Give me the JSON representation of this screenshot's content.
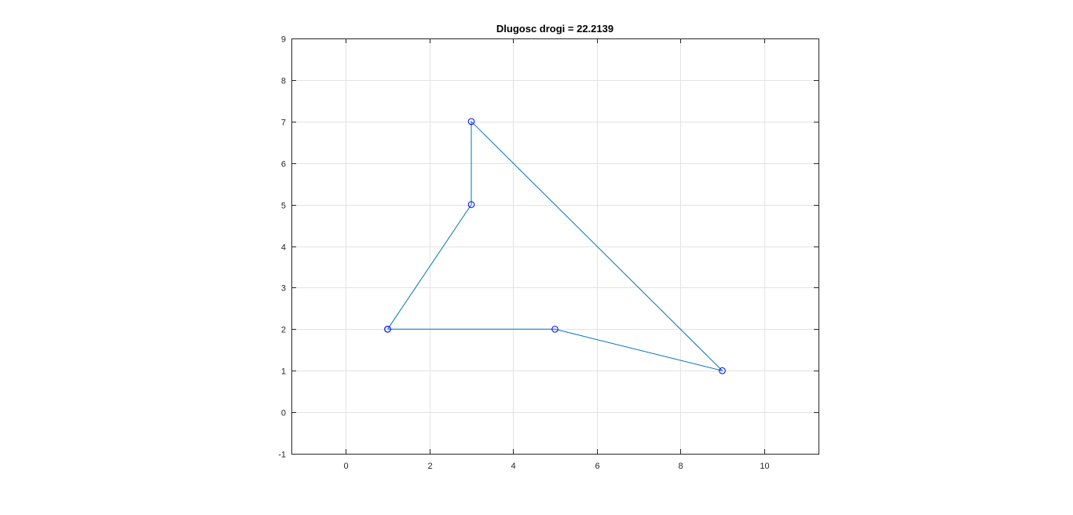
{
  "chart_data": {
    "type": "line",
    "title": "Dlugosc drogi = 22.2139",
    "xlabel": "",
    "ylabel": "",
    "xlim": [
      -1.3,
      11.3
    ],
    "ylim": [
      -1,
      9
    ],
    "grid": true,
    "x_ticks": [
      0,
      2,
      4,
      6,
      8,
      10
    ],
    "y_ticks": [
      -1,
      0,
      1,
      2,
      3,
      4,
      5,
      6,
      7,
      8,
      9
    ],
    "series": [
      {
        "marker": "circle",
        "line_color": "#0072BD",
        "marker_color": "#0000FF",
        "x": [
          1,
          3,
          3,
          9,
          5,
          1
        ],
        "y": [
          2,
          5,
          7,
          1,
          2,
          2
        ]
      }
    ]
  }
}
